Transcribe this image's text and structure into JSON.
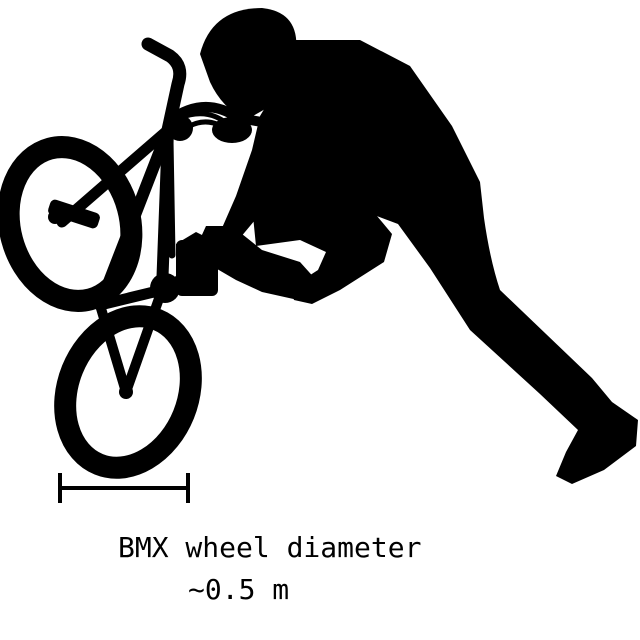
{
  "illustration": {
    "subject_icon": "bmx-rider-silhouette-icon",
    "fill_color": "#000000",
    "background_color": "#ffffff"
  },
  "scale_bar": {
    "icon": "scale-bar-icon",
    "color": "#000000"
  },
  "caption": {
    "line1": "BMX wheel diameter",
    "line2": "~0.5 m"
  }
}
